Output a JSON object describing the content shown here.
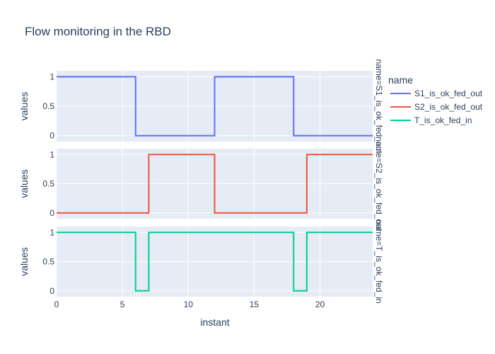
{
  "chart_data": {
    "type": "line",
    "title": "Flow monitoring in the RBD",
    "xlabel": "instant",
    "ylabel": "values",
    "xlim": [
      0,
      24
    ],
    "ylim": [
      -0.1,
      1.1
    ],
    "x_ticks": [
      0,
      5,
      10,
      15,
      20
    ],
    "y_ticks": [
      0,
      0.5,
      1
    ],
    "grid": true,
    "line_shape": "step",
    "legend": {
      "title": "name",
      "position": "right"
    },
    "series": [
      {
        "name": "S1_is_ok_fed_out",
        "facet_label": "name=S1_is_ok_fed_out",
        "color": "#636efa",
        "x": [
          0,
          6,
          12,
          18,
          24
        ],
        "values": [
          1,
          0,
          1,
          0,
          0
        ]
      },
      {
        "name": "S2_is_ok_fed_out",
        "facet_label": "name=S2_is_ok_fed_out",
        "color": "#EF553B",
        "x": [
          0,
          7,
          12,
          19,
          24
        ],
        "values": [
          0,
          1,
          0,
          1,
          1
        ]
      },
      {
        "name": "T_is_ok_fed_in",
        "facet_label": "name=T_is_ok_fed_in",
        "color": "#00cc96",
        "x": [
          0,
          6,
          7,
          18,
          19,
          24
        ],
        "values": [
          1,
          0,
          1,
          0,
          1,
          1
        ]
      }
    ]
  }
}
